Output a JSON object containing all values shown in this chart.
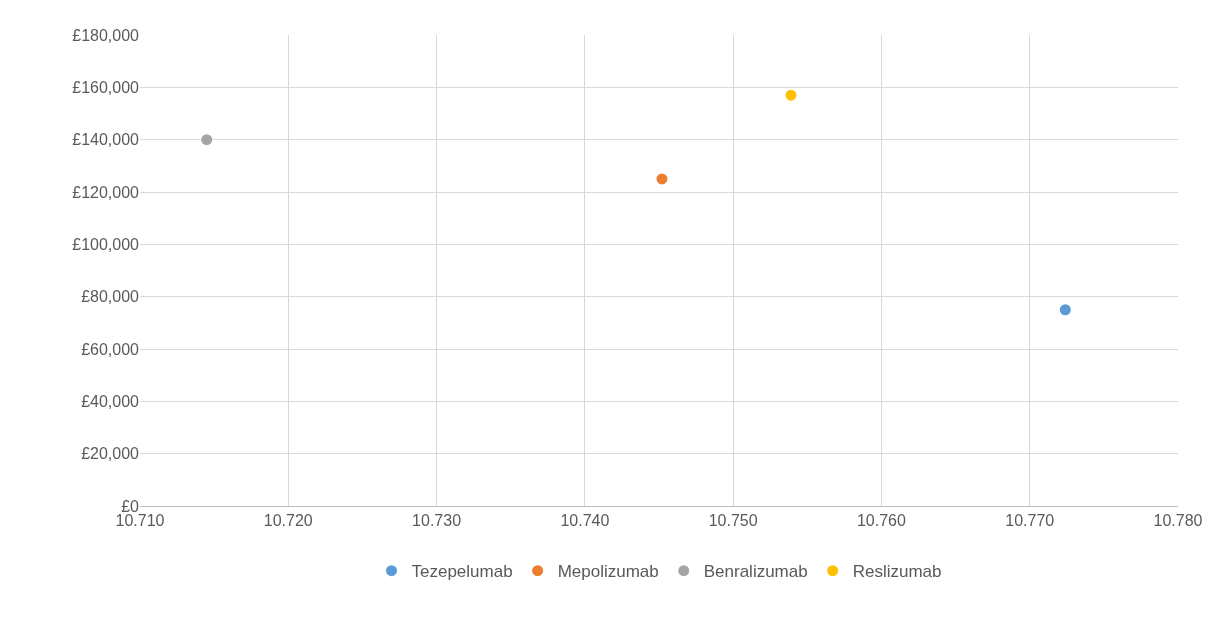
{
  "chart_data": {
    "type": "scatter",
    "series": [
      {
        "name": "Tezepelumab",
        "color": "#5b9bd5",
        "x": [
          10.7724
        ],
        "values": [
          75000
        ]
      },
      {
        "name": "Mepolizumab",
        "color": "#ed7d31",
        "x": [
          10.7452
        ],
        "values": [
          125000
        ]
      },
      {
        "name": "Benralizumab",
        "color": "#a5a5a5",
        "x": [
          10.7145
        ],
        "values": [
          140000
        ]
      },
      {
        "name": "Reslizumab",
        "color": "#ffc000",
        "x": [
          10.7539
        ],
        "values": [
          157000
        ]
      }
    ],
    "xlim": [
      10.71,
      10.78
    ],
    "xticks": [
      {
        "value": 10.71,
        "label": "10.710"
      },
      {
        "value": 10.72,
        "label": "10.720"
      },
      {
        "value": 10.73,
        "label": "10.730"
      },
      {
        "value": 10.74,
        "label": "10.740"
      },
      {
        "value": 10.75,
        "label": "10.750"
      },
      {
        "value": 10.76,
        "label": "10.760"
      },
      {
        "value": 10.77,
        "label": "10.770"
      },
      {
        "value": 10.78,
        "label": "10.780"
      }
    ],
    "ylim": [
      0,
      180000
    ],
    "yticks": [
      {
        "value": 0,
        "label": "£0"
      },
      {
        "value": 20000,
        "label": "£20,000"
      },
      {
        "value": 40000,
        "label": "£40,000"
      },
      {
        "value": 60000,
        "label": "£60,000"
      },
      {
        "value": 80000,
        "label": "£80,000"
      },
      {
        "value": 100000,
        "label": "£100,000"
      },
      {
        "value": 120000,
        "label": "£120,000"
      },
      {
        "value": 140000,
        "label": "£140,000"
      },
      {
        "value": 160000,
        "label": "£160,000"
      },
      {
        "value": 180000,
        "label": "£180,000"
      }
    ],
    "grid": true,
    "legend": "bottom",
    "marker": "circle"
  }
}
